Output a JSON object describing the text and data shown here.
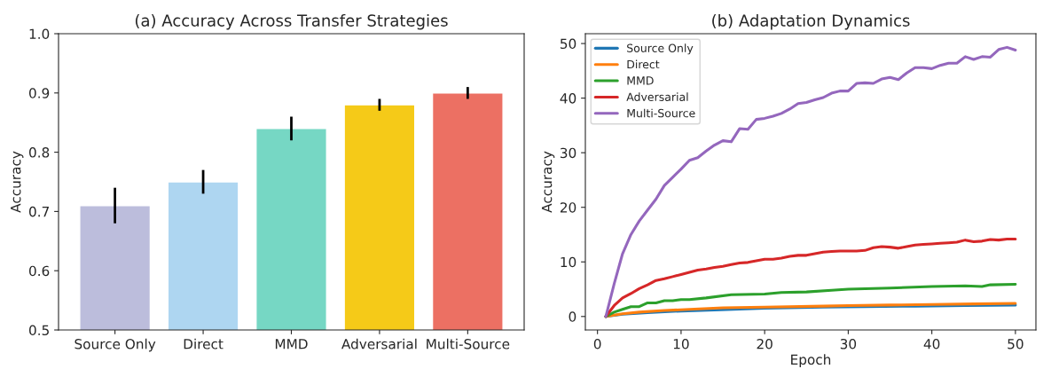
{
  "chart_data": [
    {
      "type": "bar",
      "title": "(a) Accuracy Across Transfer Strategies",
      "ylabel": "Accuracy",
      "categories": [
        "Source Only",
        "Direct",
        "MMD",
        "Adversarial",
        "Multi-Source"
      ],
      "values": [
        0.71,
        0.75,
        0.84,
        0.88,
        0.9
      ],
      "errors": [
        0.03,
        0.02,
        0.02,
        0.01,
        0.01
      ],
      "colors": [
        "#bcbddc",
        "#aed6f1",
        "#76d7c4",
        "#f5ca18",
        "#ec7063"
      ],
      "ylim": [
        0.5,
        1.0
      ],
      "yticks": [
        0.5,
        0.6,
        0.7,
        0.8,
        0.9,
        {
          "value": 1,
          "label": "1.0"
        }
      ],
      "grid": false
    },
    {
      "type": "line",
      "title": "(b) Adaptation Dynamics",
      "xlabel": "Epoch",
      "ylabel": "Accuracy",
      "xlim": [
        -1.45,
        52.45
      ],
      "xticks": [
        0,
        10,
        20,
        30,
        40,
        50
      ],
      "ylim": [
        -2.47,
        51.8
      ],
      "yticks": [
        0,
        10,
        20,
        30,
        40,
        50
      ],
      "grid": false,
      "legend": "top left",
      "marker": "none",
      "line_style": "solid",
      "series": [
        {
          "name": "Source Only",
          "color": "#1f77b4",
          "x": [
            1,
            3,
            6,
            10,
            14,
            20,
            27,
            32,
            38,
            44,
            50
          ],
          "values": [
            0,
            0.4,
            0.7,
            1.0,
            1.2,
            1.5,
            1.7,
            1.8,
            1.9,
            2.0,
            2.1
          ]
        },
        {
          "name": "Direct",
          "color": "#ff7f0e",
          "x": [
            1,
            3,
            5,
            8,
            11,
            15,
            20,
            27,
            30,
            35,
            40,
            45,
            50
          ],
          "values": [
            0,
            0.5,
            0.8,
            1.1,
            1.3,
            1.6,
            1.7,
            1.9,
            2.0,
            2.1,
            2.2,
            2.3,
            2.4
          ]
        },
        {
          "name": "MMD",
          "color": "#2ca02c",
          "x": [
            1,
            2,
            3,
            4,
            5,
            6,
            7,
            8,
            9,
            10,
            11,
            13,
            16,
            20,
            22,
            25,
            28,
            30,
            35,
            40,
            44,
            46,
            47,
            50
          ],
          "values": [
            0,
            0.8,
            1.3,
            1.8,
            1.8,
            2.5,
            2.5,
            2.9,
            2.9,
            3.1,
            3.1,
            3.4,
            4.0,
            4.1,
            4.4,
            4.5,
            4.8,
            5.0,
            5.2,
            5.5,
            5.6,
            5.5,
            5.8,
            5.9
          ]
        },
        {
          "name": "Adversarial",
          "color": "#d62728",
          "x": [
            1,
            2,
            3,
            4,
            5,
            6,
            7,
            8,
            9,
            10,
            11,
            12,
            13,
            14,
            15,
            16,
            17,
            18,
            19,
            20,
            21,
            22,
            23,
            24,
            25,
            26,
            27,
            28,
            29,
            30,
            31,
            32,
            33,
            34,
            35,
            36,
            37,
            38,
            39,
            40,
            41,
            42,
            43,
            44,
            45,
            46,
            47,
            48,
            49,
            50
          ],
          "values": [
            0,
            2.0,
            3.4,
            4.2,
            5.1,
            5.8,
            6.6,
            6.9,
            7.3,
            7.7,
            8.1,
            8.5,
            8.7,
            9.0,
            9.2,
            9.5,
            9.8,
            9.9,
            10.2,
            10.5,
            10.5,
            10.7,
            11.0,
            11.2,
            11.2,
            11.5,
            11.8,
            11.9,
            12.0,
            12.0,
            12.0,
            12.1,
            12.6,
            12.8,
            12.7,
            12.5,
            12.8,
            13.1,
            13.2,
            13.3,
            13.4,
            13.5,
            13.6,
            14.0,
            13.7,
            13.8,
            14.1,
            14.0,
            14.2,
            14.2
          ]
        },
        {
          "name": "Multi-Source",
          "color": "#9467bd",
          "x": [
            1,
            2,
            3,
            4,
            5,
            6,
            7,
            8,
            9,
            10,
            11,
            12,
            13,
            14,
            15,
            16,
            17,
            18,
            19,
            20,
            21,
            22,
            23,
            24,
            25,
            26,
            27,
            28,
            29,
            30,
            31,
            32,
            33,
            34,
            35,
            36,
            37,
            38,
            39,
            40,
            41,
            42,
            43,
            44,
            45,
            46,
            47,
            48,
            49,
            50
          ],
          "values": [
            0,
            6.0,
            11.5,
            15.0,
            17.5,
            19.5,
            21.5,
            24.0,
            25.5,
            27.0,
            28.6,
            29.1,
            30.3,
            31.4,
            32.2,
            32.0,
            34.4,
            34.3,
            36.1,
            36.3,
            36.7,
            37.2,
            38.0,
            39.0,
            39.2,
            39.7,
            40.1,
            40.9,
            41.3,
            41.3,
            42.7,
            42.8,
            42.7,
            43.5,
            43.8,
            43.4,
            44.6,
            45.6,
            45.6,
            45.4,
            46.0,
            46.4,
            46.4,
            47.6,
            47.1,
            47.6,
            47.5,
            48.9,
            49.3,
            48.8
          ]
        }
      ]
    }
  ]
}
